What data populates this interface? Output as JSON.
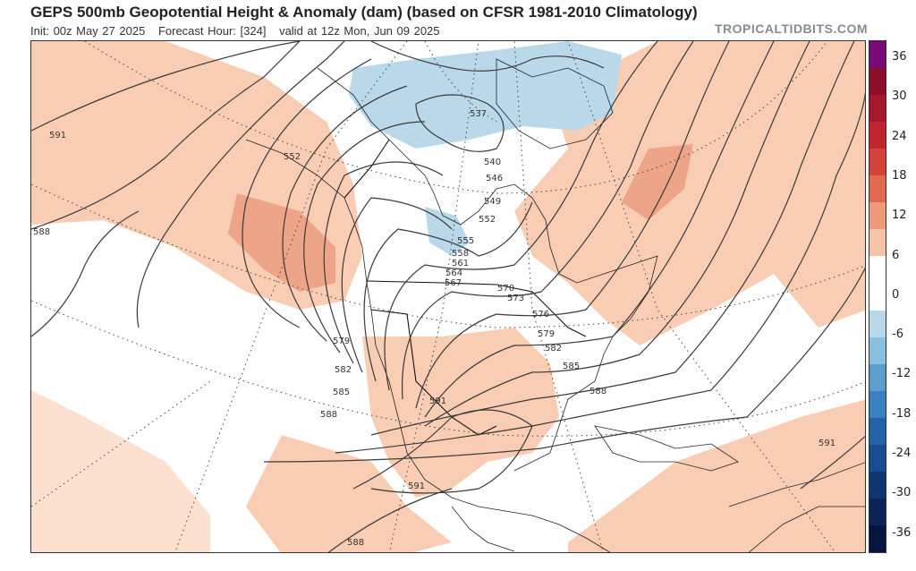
{
  "header": {
    "title": "GEPS 500mb Geopotential Height & Anomaly (dam) (based on CFSR 1981-2010 Climatology)",
    "init": "Init: 00z May 27 2025",
    "forecast_hour": "Forecast Hour: [324]",
    "valid": "valid at 12z Mon, Jun 09 2025",
    "brand": "TROPICALTIDBITS.COM"
  },
  "colorbar": {
    "labels": [
      "36",
      "30",
      "24",
      "18",
      "12",
      "6",
      "0",
      "-6",
      "-12",
      "-18",
      "-24",
      "-30",
      "-36"
    ],
    "colors": [
      "#7a0a7a",
      "#8b0e2a",
      "#a5172a",
      "#c0242e",
      "#d4433a",
      "#e06a50",
      "#ee9a7c",
      "#f6c3a8",
      "#ffffff",
      "#ffffff",
      "#b7d7ea",
      "#8bbfdf",
      "#5d9fcc",
      "#3b80bf",
      "#2563a8",
      "#184b8f",
      "#0f3673",
      "#0a2458",
      "#061640"
    ]
  },
  "contour_labels": [
    {
      "text": "591"
    },
    {
      "text": "588"
    },
    {
      "text": "552"
    },
    {
      "text": "537"
    },
    {
      "text": "540"
    },
    {
      "text": "546"
    },
    {
      "text": "549"
    },
    {
      "text": "552"
    },
    {
      "text": "555"
    },
    {
      "text": "558"
    },
    {
      "text": "561"
    },
    {
      "text": "564"
    },
    {
      "text": "567"
    },
    {
      "text": "570"
    },
    {
      "text": "573"
    },
    {
      "text": "576"
    },
    {
      "text": "579"
    },
    {
      "text": "582"
    },
    {
      "text": "585"
    },
    {
      "text": "588"
    },
    {
      "text": "579"
    },
    {
      "text": "582"
    },
    {
      "text": "585"
    },
    {
      "text": "588"
    },
    {
      "text": "591"
    },
    {
      "text": "591"
    },
    {
      "text": "588"
    },
    {
      "text": "591"
    }
  ]
}
